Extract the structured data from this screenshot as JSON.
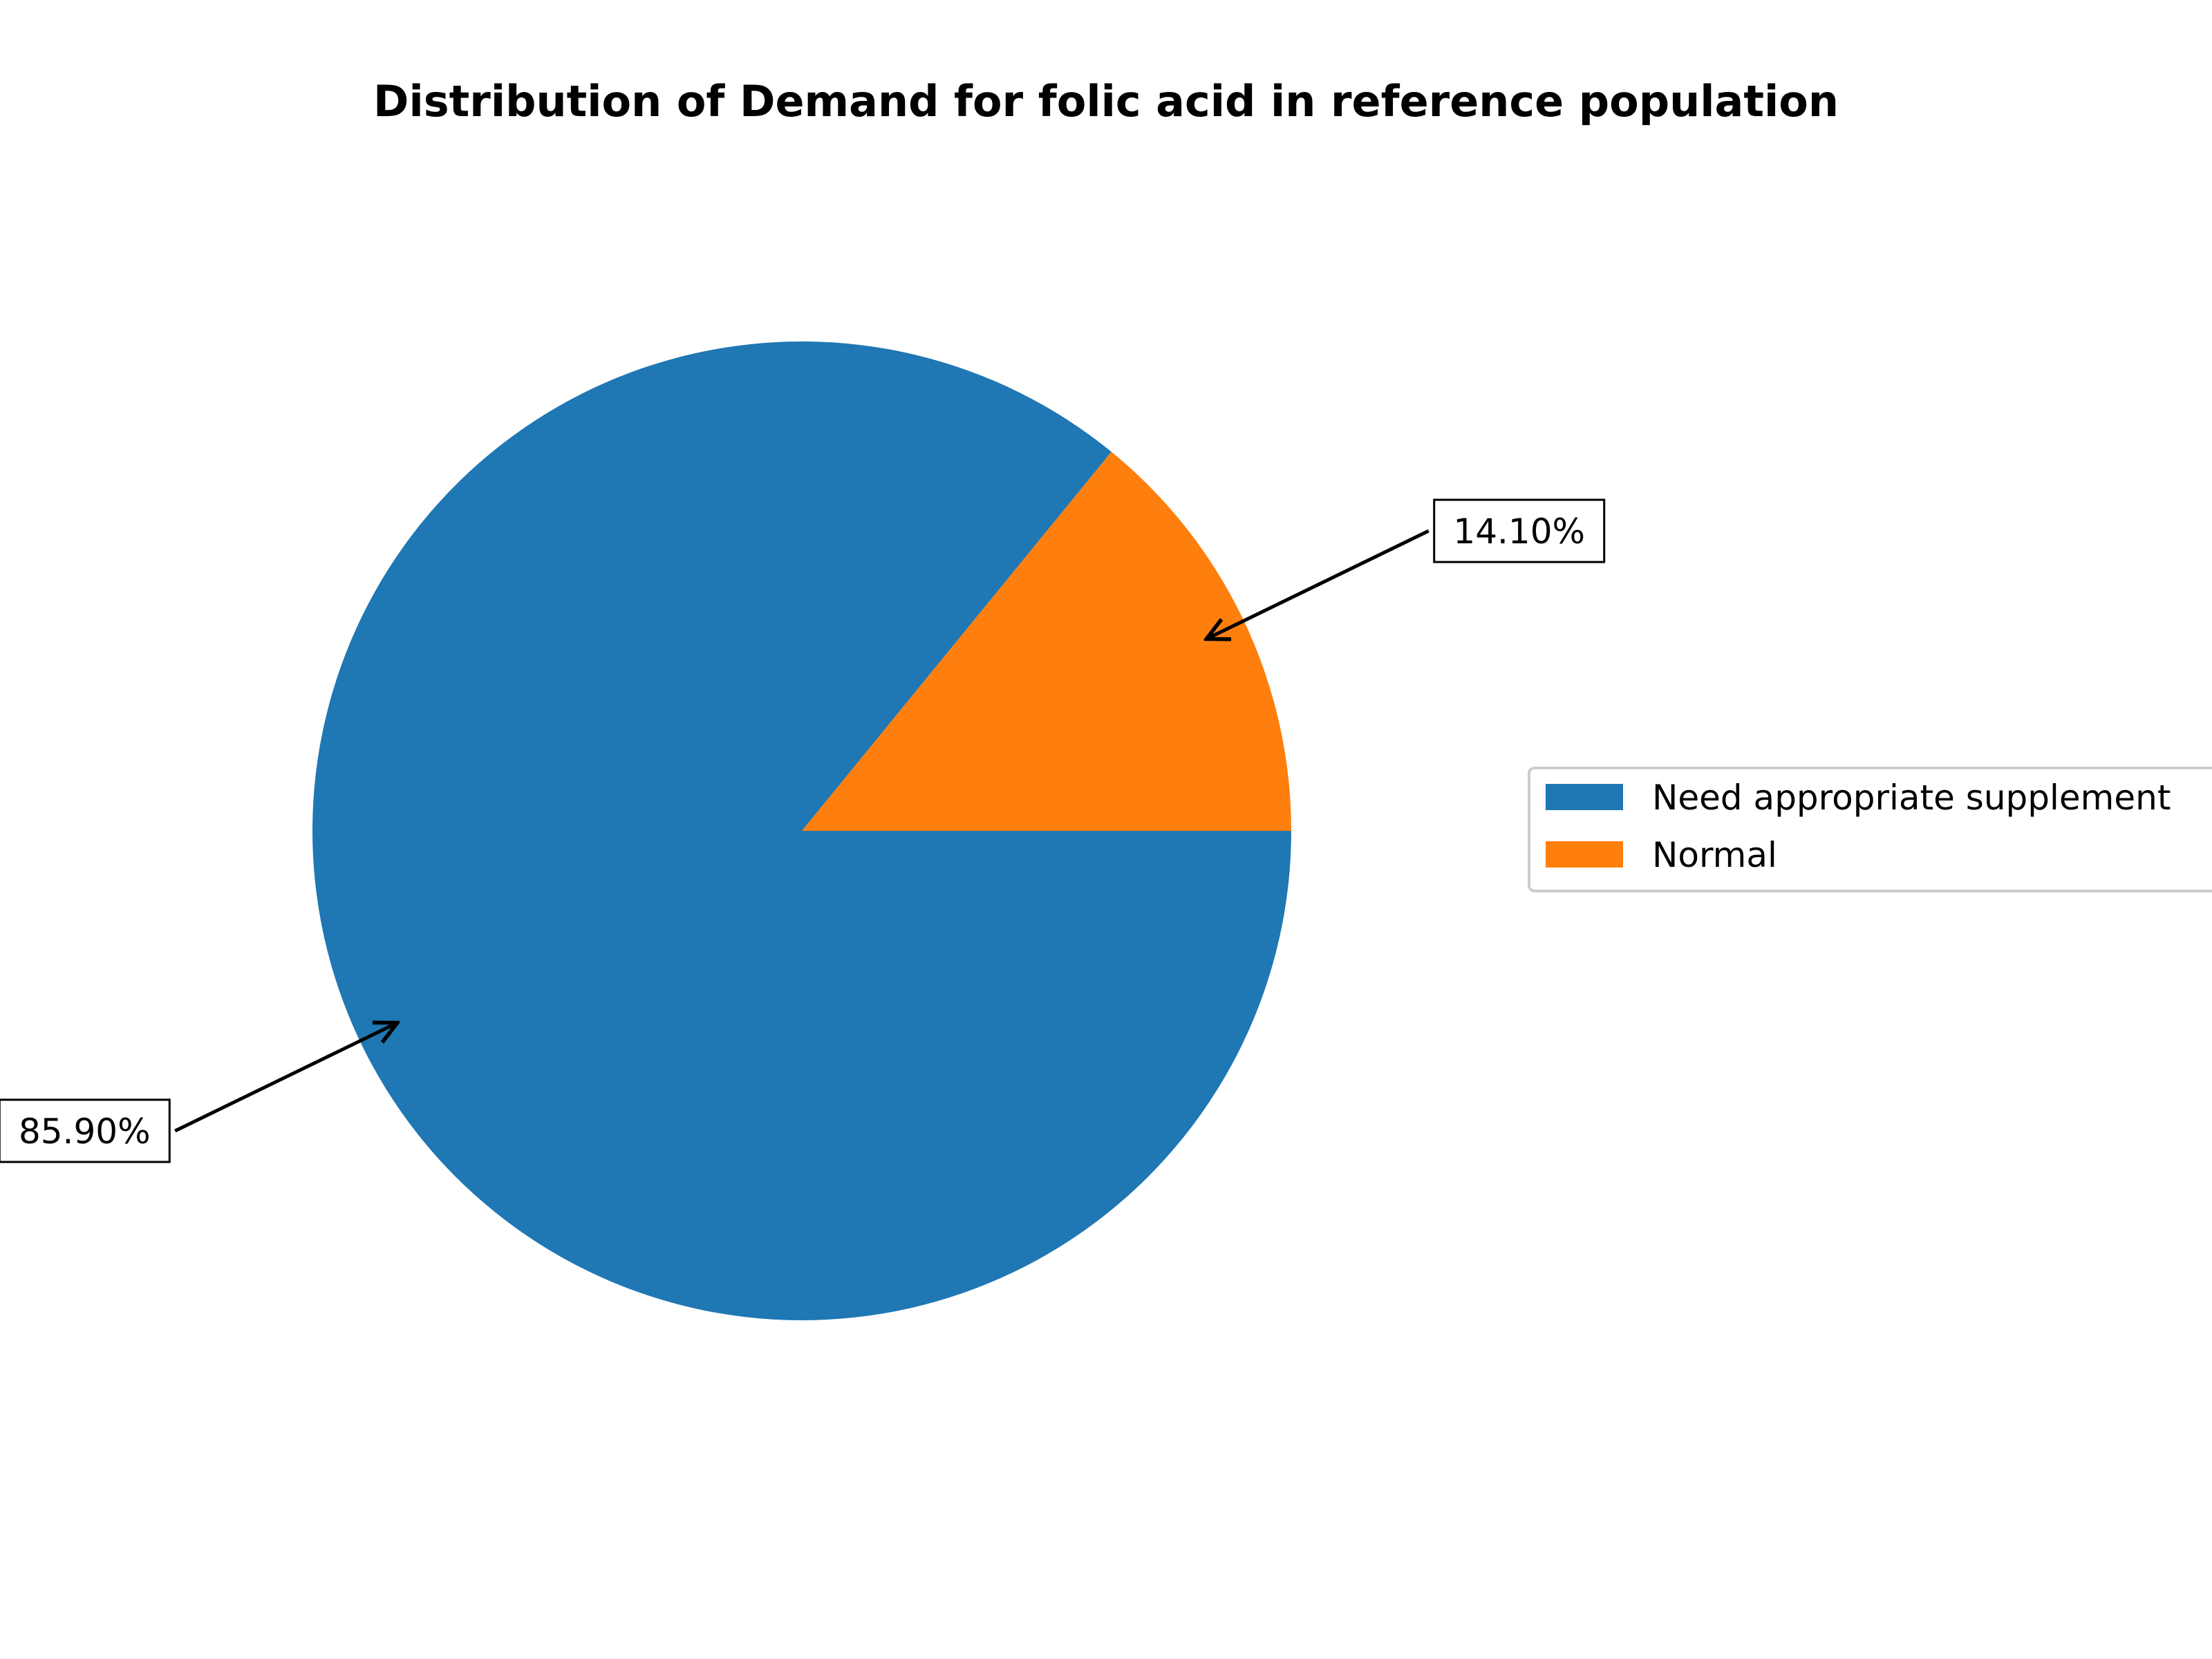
{
  "chart_data": {
    "type": "pie",
    "title": "Distribution of Demand for folic acid in reference population",
    "labels": [
      "Need appropriate supplement",
      "Normal"
    ],
    "values": [
      85.9,
      14.1
    ],
    "value_labels": [
      "85.90%",
      "14.10%"
    ],
    "colors": [
      "#1f77b4",
      "#ff7f0e"
    ],
    "start_angle_deg": 0,
    "direction": "clockwise",
    "legend_position": "right",
    "label_style": "boxed percentage with arrow"
  }
}
